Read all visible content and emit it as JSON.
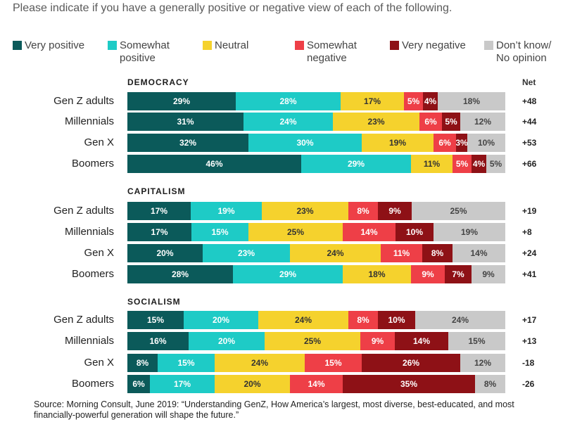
{
  "subtitle": "Please indicate if you have a generally positive or negative view of each of the following.",
  "net_header": "Net",
  "source": "Source: Morning Consult, June 2019:  “Understanding GenZ, How America’s largest, most diverse, best-educated, and most financially-powerful generation will shape the future.”",
  "legend": [
    {
      "label": "Very positive",
      "color": "#0b5a5a"
    },
    {
      "label": "Somewhat positive",
      "color": "#1ecbc6"
    },
    {
      "label": "Neutral",
      "color": "#f5d22d"
    },
    {
      "label": "Somewhat negative",
      "color": "#ee3f47"
    },
    {
      "label": "Very negative",
      "color": "#8e1116"
    },
    {
      "label": "Don’t know/ No opinion",
      "color": "#c9c9c9"
    }
  ],
  "chart_data": {
    "type": "bar",
    "orientation": "horizontal",
    "stacked": true,
    "unit": "%",
    "series_names": [
      "Very positive",
      "Somewhat positive",
      "Neutral",
      "Somewhat negative",
      "Very negative",
      "Don’t know/ No opinion"
    ],
    "sections": [
      {
        "title": "DEMOCRACY",
        "rows": [
          {
            "label": "Gen Z adults",
            "values": [
              29,
              28,
              17,
              5,
              4,
              18
            ],
            "net": "+48"
          },
          {
            "label": "Millennials",
            "values": [
              31,
              24,
              23,
              6,
              5,
              12
            ],
            "net": "+44"
          },
          {
            "label": "Gen X",
            "values": [
              32,
              30,
              19,
              6,
              3,
              10
            ],
            "net": "+53"
          },
          {
            "label": "Boomers",
            "values": [
              46,
              29,
              11,
              5,
              4,
              5
            ],
            "net": "+66"
          }
        ]
      },
      {
        "title": "CAPITALISM",
        "rows": [
          {
            "label": "Gen Z adults",
            "values": [
              17,
              19,
              23,
              8,
              9,
              25
            ],
            "net": "+19"
          },
          {
            "label": "Millennials",
            "values": [
              17,
              15,
              25,
              14,
              10,
              19
            ],
            "net": "+8"
          },
          {
            "label": "Gen X",
            "values": [
              20,
              23,
              24,
              11,
              8,
              14
            ],
            "net": "+24"
          },
          {
            "label": "Boomers",
            "values": [
              28,
              29,
              18,
              9,
              7,
              9
            ],
            "net": "+41"
          }
        ]
      },
      {
        "title": "SOCIALISM",
        "rows": [
          {
            "label": "Gen Z adults",
            "values": [
              15,
              20,
              24,
              8,
              10,
              24
            ],
            "net": "+17"
          },
          {
            "label": "Millennials",
            "values": [
              16,
              20,
              25,
              9,
              14,
              15
            ],
            "net": "+13"
          },
          {
            "label": "Gen X",
            "values": [
              8,
              15,
              24,
              15,
              26,
              12
            ],
            "net": "-18"
          },
          {
            "label": "Boomers",
            "values": [
              6,
              17,
              20,
              14,
              35,
              8
            ],
            "net": "-26"
          }
        ]
      }
    ]
  }
}
